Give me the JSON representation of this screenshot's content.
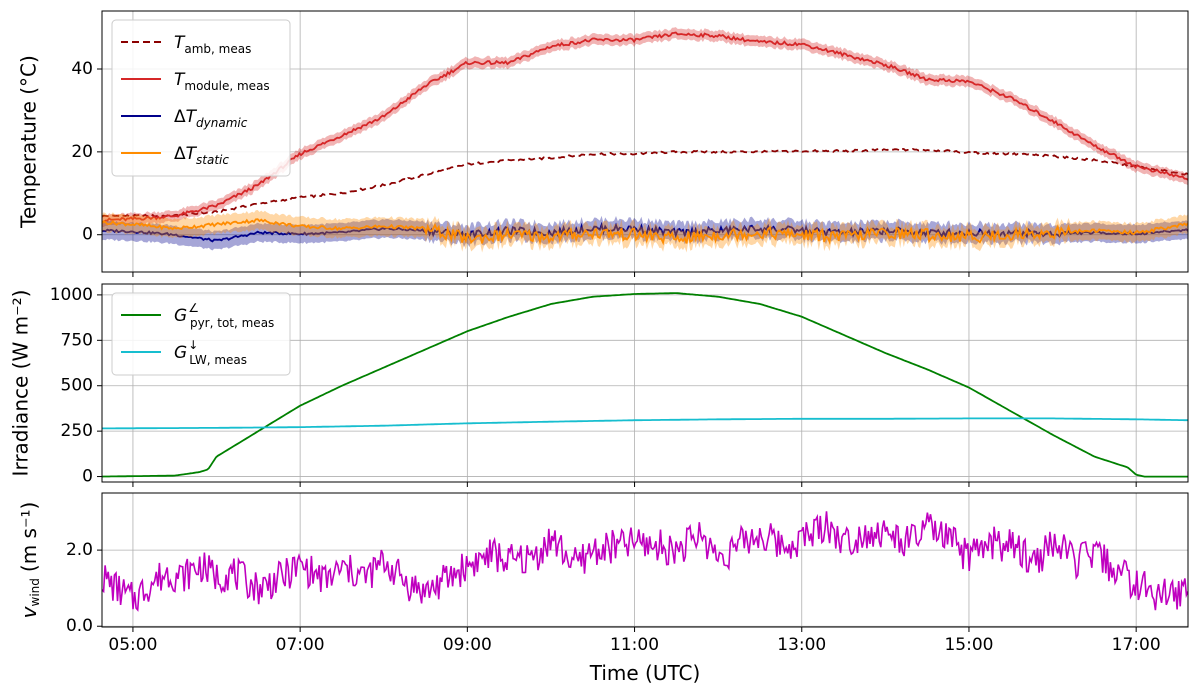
{
  "chart_data": [
    {
      "type": "line",
      "panel": "temperature",
      "ylabel": "Temperature (°C)",
      "ylim": [
        -9,
        54
      ],
      "yticks": [
        0,
        20,
        40
      ],
      "ytick_labels": [
        "0",
        "20",
        "40"
      ],
      "xlim_hours": [
        4.63,
        17.62
      ],
      "grid": true,
      "legend_loc": "upper-left",
      "series": [
        {
          "name": "T_amb,meas",
          "label_main": "T",
          "label_sub": "amb, meas",
          "color": "#8b0000",
          "style": "dashed",
          "x": [
            4.63,
            5.5,
            6.0,
            6.5,
            7.0,
            7.5,
            8.0,
            8.5,
            9.0,
            9.5,
            10.0,
            10.5,
            11.0,
            11.5,
            12.0,
            12.5,
            13.0,
            13.5,
            14.0,
            14.5,
            15.0,
            15.5,
            16.0,
            16.5,
            17.0,
            17.62
          ],
          "y": [
            4.5,
            4.6,
            5.5,
            7.5,
            9.0,
            10.0,
            12.0,
            14.5,
            17.0,
            18.0,
            18.5,
            19.5,
            19.5,
            20.0,
            20.0,
            20.0,
            20.2,
            20.2,
            20.5,
            20.5,
            19.8,
            19.5,
            19.0,
            18.0,
            16.5,
            14.5
          ]
        },
        {
          "name": "T_module,meas",
          "label_main": "T",
          "label_sub": "module, meas",
          "color": "#d62728",
          "style": "solid",
          "band": true,
          "x": [
            4.63,
            5.0,
            5.5,
            6.0,
            6.5,
            7.0,
            7.5,
            8.0,
            8.5,
            9.0,
            9.5,
            10.0,
            10.5,
            11.0,
            11.5,
            12.0,
            12.5,
            13.0,
            13.5,
            14.0,
            14.5,
            15.0,
            15.5,
            16.0,
            16.5,
            17.0,
            17.62
          ],
          "y": [
            3.5,
            3.8,
            4.5,
            7.0,
            12.0,
            19.5,
            24.0,
            28.5,
            36.0,
            41.5,
            41.5,
            45.5,
            47.0,
            47.0,
            48.5,
            48.0,
            46.5,
            46.0,
            43.5,
            41.0,
            37.5,
            37.0,
            33.0,
            27.5,
            21.5,
            16.5,
            13.5
          ]
        },
        {
          "name": "ΔT_dynamic",
          "label_main": "ΔT",
          "label_sub": "dynamic",
          "color": "#00008b",
          "style": "solid",
          "band": true,
          "x": [
            4.63,
            5.0,
            5.5,
            6.0,
            6.5,
            7.0,
            7.5,
            8.0,
            8.5,
            9.0,
            9.5,
            10.0,
            10.5,
            11.0,
            11.5,
            12.0,
            12.5,
            13.0,
            13.5,
            14.0,
            14.5,
            15.0,
            15.5,
            16.0,
            16.5,
            17.0,
            17.62
          ],
          "y": [
            1.0,
            0.8,
            0.0,
            -1.5,
            0.5,
            0.2,
            0.5,
            1.5,
            1.0,
            0.0,
            1.0,
            0.5,
            1.5,
            1.5,
            0.5,
            1.0,
            1.5,
            1.0,
            0.5,
            1.0,
            0.5,
            0.5,
            0.5,
            0.2,
            0.5,
            0.2,
            1.2
          ]
        },
        {
          "name": "ΔT_static",
          "label_main": "ΔT",
          "label_sub": "static",
          "color": "#ff8c00",
          "style": "solid",
          "band": true,
          "x": [
            4.63,
            5.0,
            5.5,
            6.0,
            6.5,
            7.0,
            7.5,
            8.0,
            8.5,
            9.0,
            9.5,
            10.0,
            10.5,
            11.0,
            11.5,
            12.0,
            12.5,
            13.0,
            13.5,
            14.0,
            14.5,
            15.0,
            15.5,
            16.0,
            16.5,
            17.0,
            17.62
          ],
          "y": [
            3.0,
            2.5,
            1.5,
            2.5,
            3.5,
            2.0,
            1.5,
            2.0,
            1.5,
            -1.0,
            0.0,
            -0.5,
            0.5,
            0.0,
            -1.0,
            0.0,
            0.5,
            0.0,
            -0.5,
            0.5,
            0.0,
            -0.5,
            0.0,
            0.5,
            1.0,
            0.5,
            2.5
          ]
        }
      ]
    },
    {
      "type": "line",
      "panel": "irradiance",
      "ylabel": "Irradiance (W m⁻²)",
      "ylim": [
        -30,
        1060
      ],
      "yticks": [
        0,
        250,
        500,
        750,
        1000
      ],
      "ytick_labels": [
        "0",
        "250",
        "500",
        "750",
        "1000"
      ],
      "xlim_hours": [
        4.63,
        17.62
      ],
      "grid": true,
      "legend_loc": "upper-left",
      "series": [
        {
          "name": "G_pyr,tot,meas",
          "label_main": "G",
          "label_sup": "∠",
          "label_sub": "pyr, tot, meas",
          "color": "#008000",
          "style": "solid",
          "x": [
            4.63,
            5.5,
            5.8,
            5.9,
            6.0,
            6.5,
            7.0,
            7.5,
            8.0,
            8.5,
            9.0,
            9.5,
            10.0,
            10.5,
            11.0,
            11.5,
            12.0,
            12.5,
            13.0,
            13.5,
            14.0,
            14.5,
            15.0,
            15.5,
            16.0,
            16.5,
            16.9,
            17.0,
            17.1,
            17.62
          ],
          "y": [
            0,
            5,
            25,
            40,
            110,
            250,
            390,
            500,
            600,
            700,
            800,
            880,
            950,
            990,
            1005,
            1010,
            990,
            950,
            880,
            780,
            680,
            590,
            490,
            360,
            230,
            110,
            50,
            10,
            0,
            0
          ]
        },
        {
          "name": "G_LW,meas",
          "label_main": "G",
          "label_sup": "↓",
          "label_sub": "LW, meas",
          "color": "#17becf",
          "style": "solid",
          "x": [
            4.63,
            6.0,
            7.0,
            8.0,
            9.0,
            10.0,
            11.0,
            12.0,
            13.0,
            14.0,
            15.0,
            16.0,
            17.0,
            17.62
          ],
          "y": [
            265,
            268,
            272,
            280,
            293,
            302,
            310,
            315,
            318,
            318,
            320,
            320,
            315,
            310
          ]
        }
      ]
    },
    {
      "type": "line",
      "panel": "wind",
      "ylabel": "v_wind (m s⁻¹)",
      "ylabel_main": "v",
      "ylabel_sub": "wind",
      "ylabel_rest": "(m s⁻¹)",
      "ylim": [
        -0.02,
        3.5
      ],
      "yticks": [
        0.0,
        2.0
      ],
      "ytick_labels": [
        "0.0",
        "2.0"
      ],
      "xlim_hours": [
        4.63,
        17.62
      ],
      "xlabel": "Time (UTC)",
      "xticks_hours": [
        5,
        7,
        9,
        11,
        13,
        15,
        17
      ],
      "xtick_labels": [
        "05:00",
        "07:00",
        "09:00",
        "11:00",
        "13:00",
        "15:00",
        "17:00"
      ],
      "grid": true,
      "series": [
        {
          "name": "v_wind",
          "color": "#bf00bf",
          "style": "solid",
          "x": [
            4.63,
            4.8,
            5.0,
            5.2,
            5.4,
            5.6,
            5.8,
            6.0,
            6.2,
            6.5,
            6.8,
            7.0,
            7.3,
            7.5,
            7.8,
            8.0,
            8.3,
            8.5,
            8.8,
            9.0,
            9.3,
            9.5,
            9.8,
            10.0,
            10.3,
            10.5,
            10.8,
            11.0,
            11.3,
            11.5,
            11.8,
            12.0,
            12.3,
            12.5,
            12.8,
            13.0,
            13.3,
            13.5,
            13.8,
            14.0,
            14.3,
            14.5,
            14.8,
            15.0,
            15.3,
            15.5,
            15.8,
            16.0,
            16.3,
            16.5,
            16.8,
            17.0,
            17.3,
            17.62
          ],
          "y": [
            1.3,
            1.0,
            0.7,
            1.1,
            1.4,
            1.3,
            1.6,
            1.3,
            1.4,
            1.0,
            1.3,
            1.6,
            1.2,
            1.5,
            1.3,
            1.7,
            1.1,
            0.9,
            1.3,
            1.6,
            1.9,
            1.7,
            1.8,
            2.3,
            1.6,
            2.0,
            2.1,
            2.2,
            2.1,
            2.0,
            2.4,
            1.8,
            2.2,
            2.4,
            2.1,
            2.3,
            2.7,
            2.2,
            2.5,
            2.4,
            2.2,
            2.6,
            2.2,
            1.8,
            2.2,
            2.1,
            1.7,
            2.2,
            1.7,
            1.9,
            1.4,
            1.1,
            0.8,
            0.9
          ]
        }
      ]
    }
  ]
}
